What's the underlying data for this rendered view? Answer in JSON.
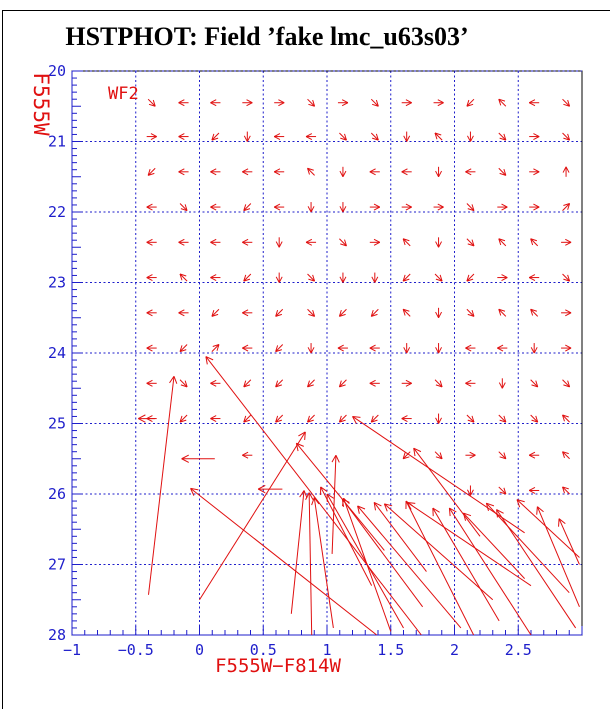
{
  "title": "HSTPHOT: Field ’fake lmc_u63s03’",
  "detector_label": "WF2",
  "colors": {
    "red": "#e01010",
    "blue": "#1e1ecb",
    "black": "#000000",
    "background": "#ffffff"
  },
  "axes": {
    "xlabel": "F555W−F814W",
    "ylabel": "F555W",
    "xlim": [
      -1.0,
      3.0
    ],
    "ylim_top": 20,
    "ylim_bottom": 28,
    "x_tick_values": [
      -1.0,
      -0.5,
      0.0,
      0.5,
      1.0,
      1.5,
      2.0,
      2.5
    ],
    "x_tick_labels": [
      "−1",
      "−0.5",
      "0",
      "0.5",
      "1",
      "1.5",
      "2",
      "2.5"
    ],
    "y_tick_values": [
      20,
      21,
      22,
      23,
      24,
      25,
      26,
      27,
      28
    ],
    "y_tick_labels": [
      "20",
      "21",
      "22",
      "23",
      "24",
      "25",
      "26",
      "27",
      "28"
    ],
    "x_gridlines": [
      -0.5,
      0.0,
      0.5,
      1.0,
      1.5,
      2.0,
      2.5
    ],
    "y_gridlines": [
      20,
      21,
      22,
      23,
      24,
      25,
      26,
      27
    ],
    "minor_tick_step": 0.1,
    "grid_style": "dashed-blue"
  },
  "chart_data": {
    "type": "vector_field",
    "description": "Photometric error vectors (input grid point to mean recovered position) on a color-magnitude diagram; small chevrons at bright magnitudes, long blend/migration arrows fainter than mag 25.",
    "small_arrow_columns": [
      -0.375,
      -0.125,
      0.125,
      0.375,
      0.625,
      0.875,
      1.125,
      1.375,
      1.625,
      1.875,
      2.125,
      2.375,
      2.625,
      2.875
    ],
    "small_arrow_rows": [
      {
        "mag": 20.45,
        "dirs": [
          "SE",
          "W",
          "W",
          "E",
          "E",
          "SE",
          "E",
          "SE",
          "E",
          "E",
          "SW",
          "NW",
          "W",
          "SE"
        ]
      },
      {
        "mag": 20.93,
        "dirs": [
          "E",
          "W",
          "SW",
          "S",
          "W",
          "W",
          "SE",
          "SE",
          "S",
          "NW",
          "S",
          "SE",
          "E",
          "SE"
        ]
      },
      {
        "mag": 21.43,
        "dirs": [
          "SW",
          "W",
          "W",
          "W",
          "W",
          "NW",
          "S",
          "W",
          "W",
          "S",
          "W",
          "SE",
          "E",
          "N"
        ]
      },
      {
        "mag": 21.93,
        "dirs": [
          "W",
          "SE",
          "W",
          "SW",
          "W",
          "S",
          "S",
          "E",
          "E",
          "E",
          "SE",
          "E",
          "E",
          "NE"
        ]
      },
      {
        "mag": 22.43,
        "dirs": [
          "W",
          "W",
          "W",
          "W",
          "S",
          "W",
          "SE",
          "E",
          "NW",
          "S",
          "SE",
          "NW",
          "NW",
          "E"
        ]
      },
      {
        "mag": 22.93,
        "dirs": [
          "W",
          "NW",
          "W",
          "SW",
          "S",
          "SE",
          "S",
          "S",
          "SW",
          "SE",
          "SW",
          "E",
          "W",
          "SE"
        ]
      },
      {
        "mag": 23.43,
        "dirs": [
          "W",
          "W",
          "SW",
          "W",
          "SW",
          "SE",
          "SW",
          "SW",
          "NW",
          "S",
          "SE",
          "NW",
          "NW",
          "E"
        ]
      },
      {
        "mag": 23.93,
        "dirs": [
          "W",
          "SW",
          "NE",
          "W",
          "SW",
          "S",
          "W",
          "W",
          "S",
          "S",
          "W",
          "W",
          "S",
          "E"
        ]
      },
      {
        "mag": 24.43,
        "dirs": [
          "W",
          "SE",
          "W",
          "SW",
          "SW",
          "SW",
          "SW",
          "W",
          "E",
          "SE",
          "W",
          "S",
          "SE",
          "SE"
        ]
      },
      {
        "mag": 24.93,
        "dirs": [
          "W",
          "SW",
          "W",
          "SW",
          "SW",
          "SW",
          "SW",
          "SW",
          "W",
          "S",
          "SE",
          "SE",
          "SE",
          "NW"
        ]
      },
      {
        "mag": 25.45,
        "dirs": [
          "",
          "",
          "",
          "W",
          "",
          "",
          "",
          "",
          "SW",
          "SE",
          "E",
          "SE",
          "W",
          "NW"
        ]
      },
      {
        "mag": 25.95,
        "dirs": [
          "",
          "",
          "",
          "",
          "",
          "",
          "",
          "",
          "",
          "",
          "S",
          "SE",
          "W",
          "NW"
        ]
      }
    ],
    "long_arrows_tail_to_head": [
      [
        -0.4,
        27.43,
        -0.2,
        24.33
      ],
      [
        1.74,
        28.0,
        0.05,
        24.05
      ],
      [
        0.12,
        25.5,
        -0.14,
        25.5
      ],
      [
        -0.35,
        24.93,
        -0.48,
        24.93
      ],
      [
        0.65,
        25.93,
        0.46,
        25.93
      ],
      [
        1.39,
        28.0,
        -0.07,
        25.92
      ],
      [
        0.0,
        27.5,
        0.83,
        25.12
      ],
      [
        1.45,
        26.8,
        0.76,
        25.28
      ],
      [
        1.04,
        26.85,
        1.07,
        25.45
      ],
      [
        1.75,
        27.6,
        1.12,
        26.07
      ],
      [
        1.5,
        27.95,
        1.13,
        26.06
      ],
      [
        2.05,
        27.9,
        1.24,
        26.17
      ],
      [
        1.78,
        27.1,
        1.37,
        26.12
      ],
      [
        2.3,
        27.5,
        1.45,
        26.14
      ],
      [
        2.15,
        28.0,
        1.62,
        26.1
      ],
      [
        2.6,
        27.3,
        1.63,
        26.12
      ],
      [
        2.35,
        27.8,
        1.83,
        26.2
      ],
      [
        2.6,
        28.0,
        1.96,
        26.2
      ],
      [
        2.55,
        27.2,
        2.07,
        26.27
      ],
      [
        2.9,
        27.4,
        2.25,
        26.13
      ],
      [
        2.95,
        27.9,
        2.33,
        26.22
      ],
      [
        2.98,
        26.9,
        2.49,
        26.08
      ],
      [
        2.98,
        27.6,
        2.65,
        26.18
      ],
      [
        2.98,
        27.0,
        2.82,
        26.35
      ],
      [
        0.72,
        27.7,
        0.82,
        25.95
      ],
      [
        0.88,
        28.0,
        0.86,
        25.98
      ],
      [
        1.05,
        27.9,
        0.9,
        26.05
      ],
      [
        1.35,
        27.3,
        0.95,
        25.9
      ],
      [
        1.6,
        27.9,
        1.0,
        26.0
      ],
      [
        2.55,
        26.55,
        1.2,
        24.9
      ],
      [
        2.2,
        26.6,
        1.68,
        25.35
      ]
    ]
  }
}
